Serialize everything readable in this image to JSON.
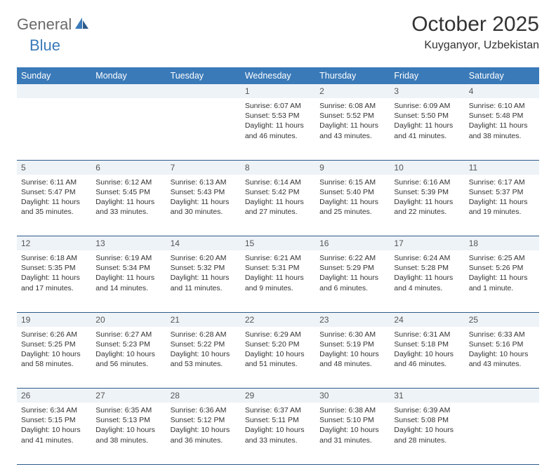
{
  "logo": {
    "part1": "General",
    "part2": "Blue"
  },
  "title": "October 2025",
  "location": "Kuyganyor, Uzbekistan",
  "colors": {
    "header_bg": "#3a7ab8",
    "header_fg": "#ffffff",
    "daynum_bg": "#eef3f7",
    "daynum_fg": "#555555",
    "row_border": "#2e5a8a",
    "logo_gray": "#6a6a6a",
    "logo_blue": "#3a7ab8"
  },
  "weekdays": [
    "Sunday",
    "Monday",
    "Tuesday",
    "Wednesday",
    "Thursday",
    "Friday",
    "Saturday"
  ],
  "weeks": [
    [
      null,
      null,
      null,
      {
        "n": "1",
        "sunrise": "6:07 AM",
        "sunset": "5:53 PM",
        "dl1": "Daylight: 11 hours",
        "dl2": "and 46 minutes."
      },
      {
        "n": "2",
        "sunrise": "6:08 AM",
        "sunset": "5:52 PM",
        "dl1": "Daylight: 11 hours",
        "dl2": "and 43 minutes."
      },
      {
        "n": "3",
        "sunrise": "6:09 AM",
        "sunset": "5:50 PM",
        "dl1": "Daylight: 11 hours",
        "dl2": "and 41 minutes."
      },
      {
        "n": "4",
        "sunrise": "6:10 AM",
        "sunset": "5:48 PM",
        "dl1": "Daylight: 11 hours",
        "dl2": "and 38 minutes."
      }
    ],
    [
      {
        "n": "5",
        "sunrise": "6:11 AM",
        "sunset": "5:47 PM",
        "dl1": "Daylight: 11 hours",
        "dl2": "and 35 minutes."
      },
      {
        "n": "6",
        "sunrise": "6:12 AM",
        "sunset": "5:45 PM",
        "dl1": "Daylight: 11 hours",
        "dl2": "and 33 minutes."
      },
      {
        "n": "7",
        "sunrise": "6:13 AM",
        "sunset": "5:43 PM",
        "dl1": "Daylight: 11 hours",
        "dl2": "and 30 minutes."
      },
      {
        "n": "8",
        "sunrise": "6:14 AM",
        "sunset": "5:42 PM",
        "dl1": "Daylight: 11 hours",
        "dl2": "and 27 minutes."
      },
      {
        "n": "9",
        "sunrise": "6:15 AM",
        "sunset": "5:40 PM",
        "dl1": "Daylight: 11 hours",
        "dl2": "and 25 minutes."
      },
      {
        "n": "10",
        "sunrise": "6:16 AM",
        "sunset": "5:39 PM",
        "dl1": "Daylight: 11 hours",
        "dl2": "and 22 minutes."
      },
      {
        "n": "11",
        "sunrise": "6:17 AM",
        "sunset": "5:37 PM",
        "dl1": "Daylight: 11 hours",
        "dl2": "and 19 minutes."
      }
    ],
    [
      {
        "n": "12",
        "sunrise": "6:18 AM",
        "sunset": "5:35 PM",
        "dl1": "Daylight: 11 hours",
        "dl2": "and 17 minutes."
      },
      {
        "n": "13",
        "sunrise": "6:19 AM",
        "sunset": "5:34 PM",
        "dl1": "Daylight: 11 hours",
        "dl2": "and 14 minutes."
      },
      {
        "n": "14",
        "sunrise": "6:20 AM",
        "sunset": "5:32 PM",
        "dl1": "Daylight: 11 hours",
        "dl2": "and 11 minutes."
      },
      {
        "n": "15",
        "sunrise": "6:21 AM",
        "sunset": "5:31 PM",
        "dl1": "Daylight: 11 hours",
        "dl2": "and 9 minutes."
      },
      {
        "n": "16",
        "sunrise": "6:22 AM",
        "sunset": "5:29 PM",
        "dl1": "Daylight: 11 hours",
        "dl2": "and 6 minutes."
      },
      {
        "n": "17",
        "sunrise": "6:24 AM",
        "sunset": "5:28 PM",
        "dl1": "Daylight: 11 hours",
        "dl2": "and 4 minutes."
      },
      {
        "n": "18",
        "sunrise": "6:25 AM",
        "sunset": "5:26 PM",
        "dl1": "Daylight: 11 hours",
        "dl2": "and 1 minute."
      }
    ],
    [
      {
        "n": "19",
        "sunrise": "6:26 AM",
        "sunset": "5:25 PM",
        "dl1": "Daylight: 10 hours",
        "dl2": "and 58 minutes."
      },
      {
        "n": "20",
        "sunrise": "6:27 AM",
        "sunset": "5:23 PM",
        "dl1": "Daylight: 10 hours",
        "dl2": "and 56 minutes."
      },
      {
        "n": "21",
        "sunrise": "6:28 AM",
        "sunset": "5:22 PM",
        "dl1": "Daylight: 10 hours",
        "dl2": "and 53 minutes."
      },
      {
        "n": "22",
        "sunrise": "6:29 AM",
        "sunset": "5:20 PM",
        "dl1": "Daylight: 10 hours",
        "dl2": "and 51 minutes."
      },
      {
        "n": "23",
        "sunrise": "6:30 AM",
        "sunset": "5:19 PM",
        "dl1": "Daylight: 10 hours",
        "dl2": "and 48 minutes."
      },
      {
        "n": "24",
        "sunrise": "6:31 AM",
        "sunset": "5:18 PM",
        "dl1": "Daylight: 10 hours",
        "dl2": "and 46 minutes."
      },
      {
        "n": "25",
        "sunrise": "6:33 AM",
        "sunset": "5:16 PM",
        "dl1": "Daylight: 10 hours",
        "dl2": "and 43 minutes."
      }
    ],
    [
      {
        "n": "26",
        "sunrise": "6:34 AM",
        "sunset": "5:15 PM",
        "dl1": "Daylight: 10 hours",
        "dl2": "and 41 minutes."
      },
      {
        "n": "27",
        "sunrise": "6:35 AM",
        "sunset": "5:13 PM",
        "dl1": "Daylight: 10 hours",
        "dl2": "and 38 minutes."
      },
      {
        "n": "28",
        "sunrise": "6:36 AM",
        "sunset": "5:12 PM",
        "dl1": "Daylight: 10 hours",
        "dl2": "and 36 minutes."
      },
      {
        "n": "29",
        "sunrise": "6:37 AM",
        "sunset": "5:11 PM",
        "dl1": "Daylight: 10 hours",
        "dl2": "and 33 minutes."
      },
      {
        "n": "30",
        "sunrise": "6:38 AM",
        "sunset": "5:10 PM",
        "dl1": "Daylight: 10 hours",
        "dl2": "and 31 minutes."
      },
      {
        "n": "31",
        "sunrise": "6:39 AM",
        "sunset": "5:08 PM",
        "dl1": "Daylight: 10 hours",
        "dl2": "and 28 minutes."
      },
      null
    ]
  ]
}
